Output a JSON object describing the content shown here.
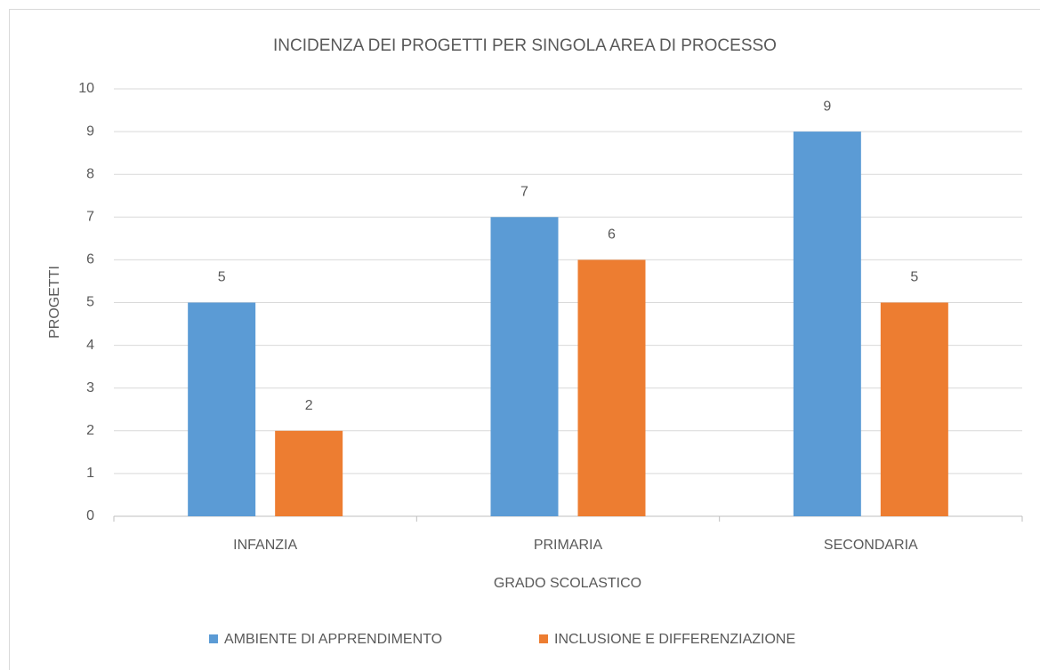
{
  "chart_data": {
    "type": "bar",
    "title": "INCIDENZA DEI PROGETTI PER SINGOLA AREA DI PROCESSO",
    "x_label": "GRADO SCOLASTICO",
    "y_label": "PROGETTI",
    "categories": [
      "INFANZIA",
      "PRIMARIA",
      "SECONDARIA"
    ],
    "series": [
      {
        "name": "AMBIENTE DI APPRENDIMENTO",
        "color": "#5b9bd5",
        "values": [
          5,
          7,
          9
        ]
      },
      {
        "name": "INCLUSIONE E DIFFERENZIAZIONE",
        "color": "#ed7d31",
        "values": [
          2,
          6,
          5
        ]
      }
    ],
    "ylim": [
      0,
      10
    ],
    "yticks": [
      0,
      1,
      2,
      3,
      4,
      5,
      6,
      7,
      8,
      9,
      10
    ],
    "grid": true,
    "legend": "bottom",
    "data_labels": true
  }
}
